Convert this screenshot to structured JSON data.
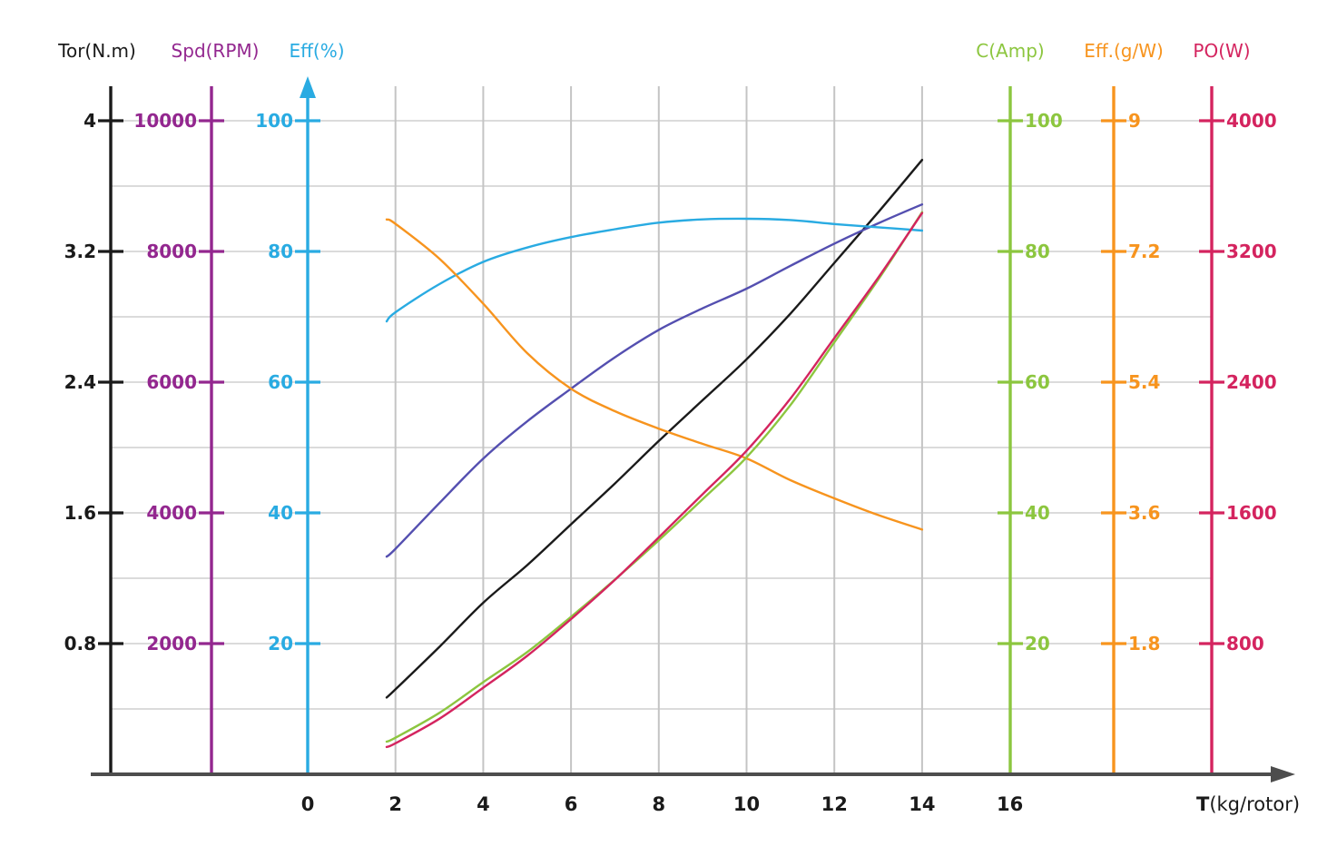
{
  "chart_data": {
    "type": "line",
    "title": "",
    "x_axis": {
      "label_bold": "T",
      "label_rest": "(kg/rotor)",
      "ticks": [
        0,
        2,
        4,
        6,
        8,
        10,
        12,
        14,
        16
      ],
      "range": [
        0,
        16
      ]
    },
    "y_axes": [
      {
        "id": "tor",
        "label": "Tor(N.m)",
        "color": "#1A1A1A",
        "side": "left",
        "tick_step": 0.8,
        "ticks": [
          4,
          3.2,
          2.4,
          1.6,
          0.8
        ],
        "arrow": false
      },
      {
        "id": "spd",
        "label": "Spd(RPM)",
        "color": "#93278F",
        "side": "left",
        "tick_step": 2000,
        "ticks": [
          10000,
          8000,
          6000,
          4000,
          2000
        ],
        "arrow": false
      },
      {
        "id": "eff",
        "label": "Eff(%)",
        "color": "#29ABE2",
        "side": "left",
        "tick_step": 20,
        "ticks": [
          100,
          80,
          60,
          40,
          20
        ],
        "arrow": true
      },
      {
        "id": "c",
        "label": "C(Amp)",
        "color": "#8CC63F",
        "side": "right",
        "tick_step": 20,
        "ticks": [
          100,
          80,
          60,
          40,
          20
        ],
        "arrow": false
      },
      {
        "id": "gw",
        "label": "Eff.(g/W)",
        "color": "#F7941E",
        "side": "right",
        "tick_step": 1.8,
        "ticks": [
          9,
          7.2,
          5.4,
          3.6,
          1.8
        ],
        "arrow": false
      },
      {
        "id": "po",
        "label": "PO(W)",
        "color": "#D4245F",
        "side": "right",
        "tick_step": 800,
        "ticks": [
          4000,
          3200,
          2400,
          1600,
          800
        ],
        "arrow": false
      }
    ],
    "x_samples": [
      1.8,
      2,
      3,
      4,
      5,
      6,
      7,
      8,
      9,
      10,
      11,
      12,
      13,
      14
    ],
    "series": [
      {
        "name": "Tor(N.m)",
        "axis": "tor",
        "color": "#1A1A1A",
        "values": [
          0.47,
          0.52,
          0.78,
          1.05,
          1.28,
          1.53,
          1.78,
          2.04,
          2.29,
          2.54,
          2.82,
          3.13,
          3.44,
          3.76
        ]
      },
      {
        "name": "Spd(RPM)",
        "axis": "spd",
        "color": "#544FB0",
        "values": [
          3330,
          3450,
          4150,
          4830,
          5400,
          5900,
          6380,
          6800,
          7130,
          7430,
          7780,
          8120,
          8430,
          8720
        ]
      },
      {
        "name": "Eff(%)",
        "axis": "eff",
        "color": "#29ABE2",
        "values": [
          69.3,
          70.7,
          75.0,
          78.4,
          80.6,
          82.2,
          83.4,
          84.4,
          84.9,
          85.0,
          84.8,
          84.2,
          83.7,
          83.2
        ]
      },
      {
        "name": "Eff.(g/W)",
        "axis": "gw",
        "color": "#F7941E",
        "values": [
          7.64,
          7.58,
          7.1,
          6.48,
          5.8,
          5.31,
          5.0,
          4.76,
          4.55,
          4.35,
          4.05,
          3.8,
          3.57,
          3.37
        ]
      },
      {
        "name": "C(Amp)",
        "axis": "c",
        "color": "#8CC63F",
        "values": [
          5.0,
          5.6,
          9.4,
          14.1,
          18.7,
          24.1,
          29.8,
          35.8,
          42.1,
          48.5,
          56.5,
          66.1,
          75.7,
          86.0
        ]
      },
      {
        "name": "PO(W)",
        "axis": "po",
        "color": "#D4245F",
        "values": [
          167,
          190,
          340,
          530,
          725,
          950,
          1190,
          1450,
          1715,
          1980,
          2300,
          2670,
          3040,
          3435
        ]
      }
    ],
    "grid": {
      "h_color": "#CFCFCF",
      "v_color": "#C4C4C4",
      "x_axis_color": "#4D4D4D"
    }
  }
}
